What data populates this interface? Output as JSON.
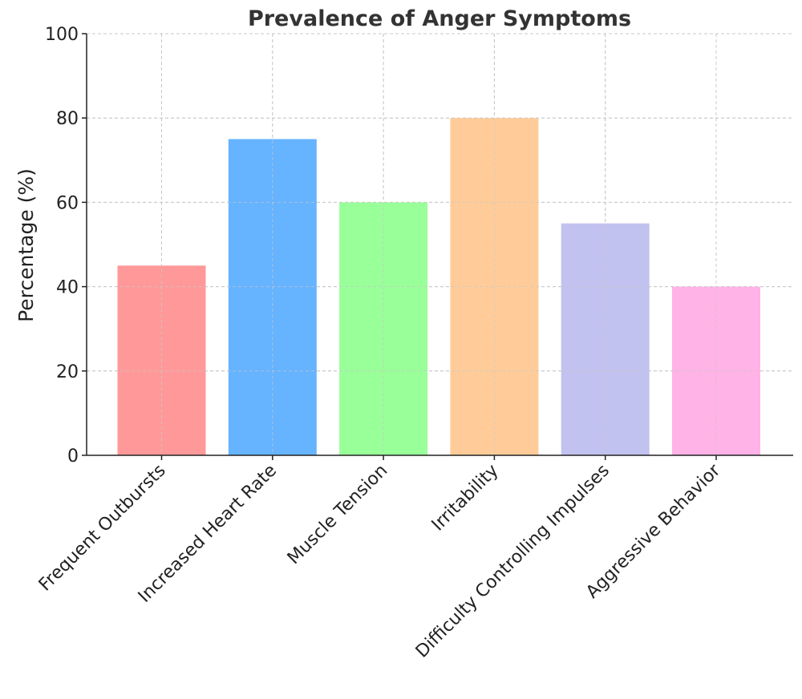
{
  "chart_data": {
    "type": "bar",
    "title": "Prevalence of Anger Symptoms",
    "xlabel": "",
    "ylabel": "Percentage (%)",
    "categories": [
      "Frequent Outbursts",
      "Increased Heart Rate",
      "Muscle Tension",
      "Irritability",
      "Difficulty Controlling Impulses",
      "Aggressive Behavior"
    ],
    "values": [
      45,
      75,
      60,
      80,
      55,
      40
    ],
    "colors": [
      "#ff9999",
      "#66b3ff",
      "#99ff99",
      "#ffcc99",
      "#c2c2f0",
      "#ffb3e6"
    ],
    "ylim": [
      0,
      100
    ],
    "yticks": [
      0,
      20,
      40,
      60,
      80,
      100
    ],
    "grid": true,
    "legend": "none"
  }
}
